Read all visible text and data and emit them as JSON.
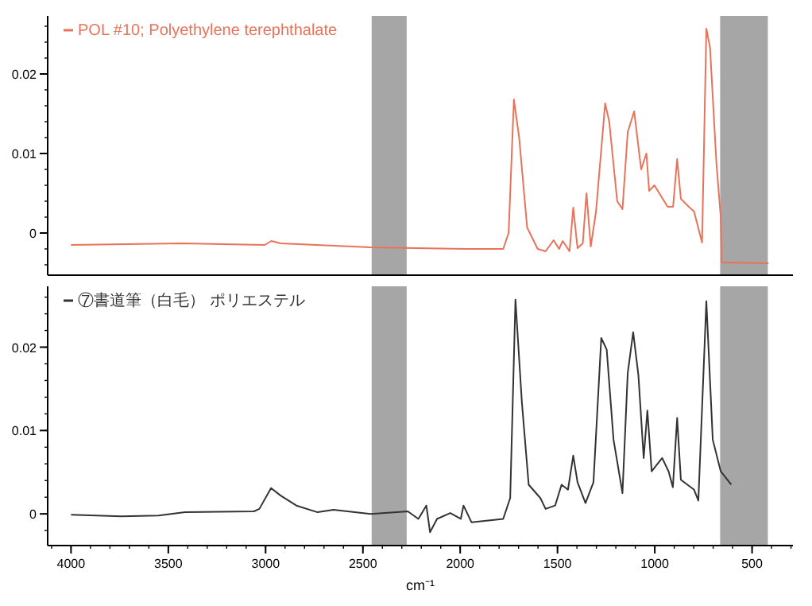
{
  "chart_data": [
    {
      "type": "line",
      "xlim": [
        4120,
        290
      ],
      "ylim": [
        -0.0053,
        0.0273
      ],
      "yticks": [
        0,
        0.01,
        0.02
      ],
      "tick_labels": "y",
      "legend": "top left",
      "grid": false,
      "bands": [
        {
          "axis": "x",
          "from": 2455,
          "to": 2275,
          "color": "#a6a6a6"
        },
        {
          "axis": "x",
          "from": 664,
          "to": 419,
          "color": "#a6a6a6"
        }
      ],
      "series": [
        {
          "name": "POL #10; Polyethylene terephthalate",
          "color": "#e8735a",
          "x": [
            4000,
            3428,
            3005,
            2970,
            2924,
            2460,
            1970,
            1779,
            1751,
            1724,
            1697,
            1656,
            1602,
            1561,
            1520,
            1492,
            1473,
            1438,
            1419,
            1397,
            1370,
            1351,
            1329,
            1302,
            1255,
            1234,
            1193,
            1166,
            1139,
            1106,
            1070,
            1043,
            1029,
            1002,
            934,
            906,
            885,
            866,
            825,
            798,
            757,
            735,
            716,
            683,
            661,
            656,
            416
          ],
          "values": [
            -0.0015,
            -0.0013,
            -0.0015,
            -0.001,
            -0.0013,
            -0.0018,
            -0.002,
            -0.002,
            0,
            0.0168,
            0.012,
            0.0007,
            -0.002,
            -0.0023,
            -0.0009,
            -0.002,
            -0.001,
            -0.0023,
            0.0032,
            -0.0019,
            -0.0013,
            0.005,
            -0.0017,
            0.0027,
            0.0163,
            0.014,
            0.004,
            0.003,
            0.0127,
            0.0153,
            0.008,
            0.01,
            0.0053,
            0.006,
            0.0033,
            0.0033,
            0.0093,
            0.0043,
            0.0033,
            0.0027,
            -0.0012,
            0.0257,
            0.0233,
            0.0087,
            0.002,
            -0.0037,
            -0.0038
          ]
        }
      ]
    },
    {
      "type": "line",
      "xlim": [
        4120,
        290
      ],
      "ylim": [
        -0.0038,
        0.0273
      ],
      "yticks": [
        0,
        0.01,
        0.02
      ],
      "xticks": [
        4000,
        3500,
        3000,
        2500,
        2000,
        1500,
        1000,
        500
      ],
      "xlabel": "cm⁻¹",
      "legend": "top left",
      "grid": false,
      "bands": [
        {
          "axis": "x",
          "from": 2455,
          "to": 2275,
          "color": "#a6a6a6"
        },
        {
          "axis": "x",
          "from": 664,
          "to": 419,
          "color": "#a6a6a6"
        }
      ],
      "series": [
        {
          "name": "⑦書道筆（白毛） ポリエステル",
          "color": "#333333",
          "x": [
            4000,
            3741,
            3550,
            3414,
            3060,
            3032,
            2972,
            2923,
            2842,
            2733,
            2651,
            2460,
            2269,
            2215,
            2174,
            2155,
            2119,
            2051,
            1997,
            1983,
            1942,
            1779,
            1743,
            1716,
            1683,
            1648,
            1588,
            1561,
            1512,
            1479,
            1446,
            1419,
            1397,
            1356,
            1315,
            1275,
            1247,
            1212,
            1166,
            1139,
            1111,
            1084,
            1057,
            1038,
            1016,
            962,
            929,
            907,
            885,
            866,
            798,
            776,
            735,
            702,
            661,
            607
          ],
          "values": [
            -0.0001,
            -0.0003,
            -0.0002,
            0.0002,
            0.0003,
            0.0006,
            0.0031,
            0.0022,
            0.001,
            0.0002,
            0.0005,
            0,
            0.0003,
            -0.0006,
            0.001,
            -0.0022,
            -0.0006,
            0.0001,
            -0.0006,
            0.001,
            -0.001,
            -0.0006,
            0.0019,
            0.0257,
            0.0134,
            0.0035,
            0.0019,
            0.0006,
            0.001,
            0.0035,
            0.0029,
            0.007,
            0.0038,
            0.0013,
            0.0038,
            0.0211,
            0.0197,
            0.0089,
            0.0025,
            0.0169,
            0.0218,
            0.0166,
            0.0067,
            0.0124,
            0.0051,
            0.0067,
            0.0051,
            0.0032,
            0.0115,
            0.0041,
            0.0029,
            0.0016,
            0.0255,
            0.0089,
            0.0051,
            0.0035
          ]
        }
      ]
    }
  ]
}
